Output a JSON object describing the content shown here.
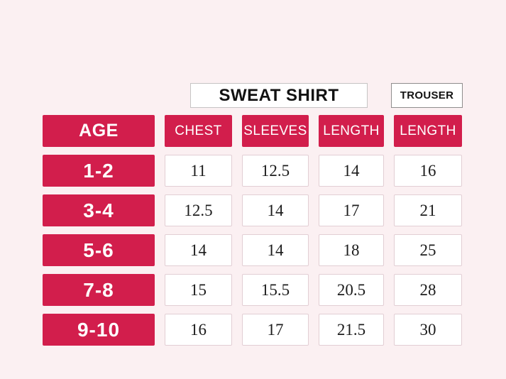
{
  "page": {
    "background": "#FBF0F2",
    "accent": "#D21E4C"
  },
  "chart_data": {
    "type": "table",
    "column_groups": [
      {
        "label": "SWEAT SHIRT",
        "columns": [
          "CHEST",
          "SLEEVES",
          "LENGTH"
        ]
      },
      {
        "label": "TROUSER",
        "columns": [
          "LENGTH"
        ]
      }
    ],
    "row_header": "AGE",
    "columns": [
      "CHEST",
      "SLEEVES",
      "LENGTH",
      "LENGTH"
    ],
    "rows": [
      {
        "age": "1-2",
        "values": [
          11,
          12.5,
          14,
          16
        ]
      },
      {
        "age": "3-4",
        "values": [
          12.5,
          14,
          17,
          21
        ]
      },
      {
        "age": "5-6",
        "values": [
          14,
          14,
          18,
          25
        ]
      },
      {
        "age": "7-8",
        "values": [
          15,
          15.5,
          20.5,
          28
        ]
      },
      {
        "age": "9-10",
        "values": [
          16,
          17,
          21.5,
          30
        ]
      }
    ]
  }
}
